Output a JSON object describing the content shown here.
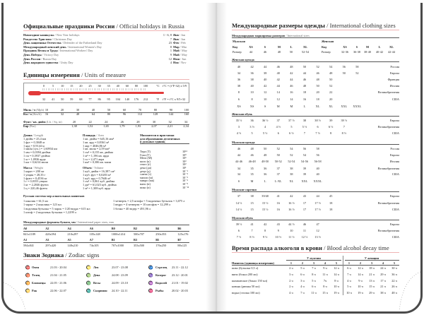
{
  "holidays": {
    "title_ru": "Официальные праздники России",
    "title_en": " / Official holidays in Russia",
    "items": [
      {
        "ru": "Новогодние каникулы",
        "en": " / New Year holidays",
        "day": "1 - 6, 8",
        "mon_ru": "Янв",
        "mon_en": " / Jan"
      },
      {
        "ru": "Рождество Христово",
        "en": " / Christmas Day",
        "day": "7",
        "mon_ru": "Янв",
        "mon_en": " / Jan"
      },
      {
        "ru": "День защитника Отечества",
        "en": " / Defender of the Fatherland Day",
        "day": "23",
        "mon_ru": "Фев",
        "mon_en": " / Feb"
      },
      {
        "ru": "Международный женский день",
        "en": " / International Women's Day",
        "day": "8",
        "mon_ru": "Мар",
        "mon_en": " / Mar"
      },
      {
        "ru": "Праздник Весны и Труда",
        "en": " / International Workers' Day",
        "day": "1",
        "mon_ru": "Май",
        "mon_en": " / May"
      },
      {
        "ru": "День Победы",
        "en": " / Victory Day",
        "day": "9",
        "mon_ru": "Май",
        "mon_en": " / May"
      },
      {
        "ru": "День России",
        "en": " / Russia Day",
        "day": "12",
        "mon_ru": "Июн",
        "mon_en": " / Jun"
      },
      {
        "ru": "День народного единства",
        "en": " / Unity Day",
        "day": "4",
        "mon_ru": "Ноя",
        "mon_en": " / Nov"
      }
    ]
  },
  "units": {
    "title_ru": "Единицы измерения",
    "title_en": " / Units of measure",
    "thermometer": {
      "celsius": [
        "0",
        "5",
        "10",
        "15",
        "20",
        "25",
        "30",
        "35",
        "40",
        "60",
        "80",
        "100"
      ],
      "c_unit": "°C",
      "c_formula": "t°C = (t°F-32) x 5/9",
      "fahrenheit": [
        "32",
        "41",
        "50",
        "59",
        "68",
        "77",
        "86",
        "95",
        "104",
        "140",
        "176",
        "212"
      ],
      "f_unit": "°F",
      "f_formula": "t°F = t°C x 9/5+32",
      "color": "#e23a3a"
    },
    "speed": {
      "mph_ru": "Миль / ч",
      "mph_en": " (Mph)",
      "mph": [
        "10",
        "20",
        "30",
        "40",
        "50",
        "60",
        "70",
        "80",
        "90",
        "100"
      ],
      "kmh_ru": "Км / ч",
      "kmh_en": " (Km/h)",
      "kmh": [
        "16",
        "32",
        "48",
        "64",
        "80",
        "96",
        "112",
        "128",
        "144",
        "160"
      ]
    },
    "pressure": {
      "psi_ru": "Фунт / кв. дюйм",
      "psi_en": " (Lb. / Sq. in)",
      "psi": [
        "20",
        "22",
        "24",
        "26",
        "28",
        "30",
        "32",
        "34"
      ],
      "bar_ru": "Бар",
      "bar_en": " (Bar)",
      "bar": [
        "1,38",
        "1,52",
        "1,65",
        "1,79",
        "1,93",
        "2,07",
        "2,21",
        "2,34"
      ]
    },
    "length": {
      "ru": "Длина",
      "en": " / Length",
      "items": [
        "1 дюйм = 25,4 мм",
        "1 фут = 0,3048 м",
        "1 ярд = 0,9144 м",
        "1 миля (сух.) = 1,60934 км",
        "1 мм = 0,0394 дюйма",
        "1 см = 0,3937 дюйма",
        "1 м = 1,0936 ярда",
        "1 км = 0,6214 мили"
      ]
    },
    "mass": {
      "ru": "Масса",
      "en": " / Weight",
      "items": [
        "1 карат = 200 мг",
        "1 унция = 28,35 г",
        "1 фунт = 0,4536 кг",
        "1 г = 0,0353 унции",
        "1 кг = 2,2046 фунта",
        "1 ц = 220,46 фунта"
      ]
    },
    "area": {
      "ru": "Площадь",
      "en": " / Area",
      "items": [
        "1 кв. дюйм = 645,16 мм²",
        "1 кв. ярд = 0,8361 м²",
        "1 акр = 4046,86 м²",
        "1 кв. миля = 2,59 км²",
        "1 см² = 0,155 кв. дюйма",
        "1 м² = 1,196 кв. ярда",
        "1 га = 2,471 акра",
        "1 км² = 0,386 кв. мили"
      ]
    },
    "volume": {
      "ru": "Объем",
      "en": " / Volume",
      "items": [
        "1 куб. дюйм = 16,387 см³",
        "1 куб. фут = 0,0283 м³",
        "1 куб. ярд = 0,7646 м³",
        "1 см³ = 0,061 куб. дюйма",
        "1 дм³ = 61,023 куб. дюйма",
        "1 м³ = 1,308 куб. ярда"
      ]
    },
    "prefixes": {
      "title": [
        "Множители и приставки",
        "для образования десятичных",
        "и дольных единиц"
      ],
      "items": [
        [
          "Тера (Т)",
          "10¹²"
        ],
        [
          "Гига (Г)",
          "10⁹"
        ],
        [
          "Мега (М)",
          "10⁶"
        ],
        [
          "кило (к)",
          "10³"
        ],
        [
          "гекто (г)",
          "10²"
        ],
        [
          "дека (да)",
          "10¹"
        ],
        [
          "деци (д)",
          "10⁻¹"
        ],
        [
          "санти (с)",
          "10⁻²"
        ],
        [
          "милли (м)",
          "10⁻³"
        ],
        [
          "микро (мк)",
          "10⁻⁶"
        ],
        [
          "нано (н)",
          "10⁻⁹"
        ],
        [
          "пико (п)",
          "10⁻¹²"
        ]
      ]
    },
    "alcohol_measures": {
      "title": "Русская система мер алкогольных напитков",
      "left": [
        "1 шкалик = 61,5 мл",
        "1 чарка = 2 шкалика = 123 мл",
        "1 водочная бутылка = 5 чарок = 1/20 ведра = 615 мл",
        "1 штоф = 2 водочных бутылки = 1,2299 л"
      ],
      "right": [
        "1 четверть = 2,5 штофа = 5 водочных бутылок = 3,075 л",
        "1 ведро = 4 четверти = 10 штофов = 12,299 л",
        "1 бочка = 40 ведер = 491,96 л"
      ]
    },
    "paper": {
      "title_ru": "Международные форматы бумаги, мм",
      "title_en": " / International paper sizes, mm",
      "row1": [
        [
          "A0",
          "841x1189"
        ],
        [
          "A2",
          "420x594"
        ],
        [
          "A4",
          "210x297"
        ],
        [
          "A6",
          "105x148"
        ],
        [
          "B0",
          "1000x1414"
        ],
        [
          "B2",
          "500x707"
        ],
        [
          "B4",
          "250x353"
        ],
        [
          "B6",
          "125x176"
        ]
      ],
      "row2": [
        [
          "A1",
          "594x841"
        ],
        [
          "A3",
          "297x420"
        ],
        [
          "A5",
          "148x210"
        ],
        [
          "A7",
          "74x105"
        ],
        [
          "B1",
          "707x1000"
        ],
        [
          "B3",
          "353x500"
        ],
        [
          "B5",
          "176x250"
        ],
        [
          "B7",
          "88x125"
        ]
      ]
    }
  },
  "zodiac": {
    "title_ru": "Знаки Зодиака",
    "title_en": " / Zodiac signs",
    "columns": [
      [
        {
          "icon": "♈",
          "name": "Овен",
          "dates": "21.03 - 20.04"
        },
        {
          "icon": "♉",
          "name": "Телец",
          "dates": "21.04 - 21.05"
        },
        {
          "icon": "♊",
          "name": "Близнецы",
          "dates": "22.05 - 21.06"
        },
        {
          "icon": "♋",
          "name": "Рак",
          "dates": "22.06 - 22.07"
        }
      ],
      [
        {
          "icon": "♌",
          "name": "Лев",
          "dates": "23.07 - 23.08"
        },
        {
          "icon": "♍",
          "name": "Дева",
          "dates": "24.08 - 23.09"
        },
        {
          "icon": "♎",
          "name": "Весы",
          "dates": "24.09 - 23.10"
        },
        {
          "icon": "♏",
          "name": "Скорпион",
          "dates": "24.10 - 22.11"
        }
      ],
      [
        {
          "icon": "♐",
          "name": "Стрелец",
          "dates": "23.11 - 22.12"
        },
        {
          "icon": "♑",
          "name": "Козерог",
          "dates": "23.12 - 20.01"
        },
        {
          "icon": "♒",
          "name": "Водолей",
          "dates": "21.01 - 19.02"
        },
        {
          "icon": "♓",
          "name": "Рыбы",
          "dates": "20.02 - 20.03"
        }
      ]
    ]
  },
  "clothing": {
    "title_ru": "Международные размеры одежды",
    "title_en": " / International clothing sizes",
    "marking": {
      "title_ru": "Международная маркировка размеров",
      "title_en": " / International sizes",
      "men": {
        "label": "Мужская",
        "code_label": "Код",
        "codes": [
          "XS",
          "S",
          "M",
          "L",
          "XL"
        ],
        "size_label": "Размер",
        "sizes": [
          "44",
          "46",
          "48",
          "50",
          "52-54"
        ]
      },
      "women": {
        "label": "Женская",
        "code_label": "Код",
        "codes": [
          "XS",
          "S",
          "M",
          "L",
          "XL"
        ],
        "size_label": "Размер",
        "sizes": [
          "32-36",
          "36-38",
          "38-40",
          "40-42",
          "42-44"
        ]
      }
    },
    "groups": [
      {
        "title": "Женская одежда",
        "rows": [
          {
            "country": "Россия",
            "v": [
              "40",
              "42",
              "44",
              "46",
              "48",
              "50",
              "52",
              "54",
              "56",
              "58"
            ]
          },
          {
            "country": "Европа",
            "v": [
              "34",
              "36",
              "38",
              "40",
              "42",
              "44",
              "46",
              "48",
              "50",
              "52"
            ]
          },
          {
            "country": "Франция",
            "v": [
              "36",
              "38",
              "40",
              "42",
              "44",
              "46",
              "48",
              "50"
            ]
          },
          {
            "country": "Италия",
            "v": [
              "38",
              "40",
              "42",
              "44",
              "46",
              "48",
              "50",
              "52"
            ]
          },
          {
            "country": "Великобритания",
            "v": [
              "8",
              "10",
              "12",
              "14",
              "16",
              "18",
              "20",
              "22"
            ]
          },
          {
            "country": "США",
            "v": [
              "6",
              "8",
              "10",
              "12",
              "14",
              "16",
              "18",
              "20"
            ]
          },
          {
            "country": "",
            "v": [
              "XS",
              "XS",
              "S",
              "M",
              "M",
              "L",
              "XL",
              "XL",
              "XXL",
              "XXXL"
            ]
          }
        ]
      },
      {
        "title": "Женская обувь",
        "rows": [
          {
            "country": "Европа",
            "v": [
              "35 ½",
              "36",
              "36 ½",
              "37",
              "37 ½",
              "38",
              "38 ½",
              "39",
              "39 ½"
            ]
          },
          {
            "country": "Великобритания",
            "v": [
              "3",
              "3 ½",
              "4",
              "4 ½",
              "5",
              "5 ½",
              "6",
              "6 ½",
              "7"
            ]
          },
          {
            "country": "США",
            "v": [
              "4 ½",
              "5",
              "5 ½",
              "6",
              "6 ½",
              "7",
              "7 ½",
              "8",
              "8 ½"
            ]
          }
        ]
      },
      {
        "title": "Мужская одежда",
        "rows": [
          {
            "country": "Россия",
            "v": [
              "46",
              "48",
              "50",
              "52",
              "54",
              "56",
              "58"
            ]
          },
          {
            "country": "Европа",
            "v": [
              "44",
              "46",
              "48",
              "50",
              "52",
              "54",
              "56"
            ]
          },
          {
            "country": "Италия",
            "v": [
              "44-46",
              "46-48",
              "48-50",
              "50-52",
              "52-54",
              "54-56",
              "56-58"
            ]
          },
          {
            "country": "Великобритания",
            "v": [
              "34",
              "35",
              "36",
              "37",
              "38",
              "39",
              "40"
            ]
          },
          {
            "country": "США",
            "v": [
              "34",
              "35",
              "36",
              "37",
              "38",
              "39",
              "40"
            ]
          },
          {
            "country": "",
            "v": [
              "S",
              "M",
              "L",
              "L-XL",
              "XL",
              "XXL",
              "XXXL"
            ]
          }
        ]
      },
      {
        "title": "Мужские сорочки",
        "rows": [
          {
            "country": "Европа",
            "v": [
              "37",
              "38",
              "39/40",
              "41",
              "42",
              "43",
              "44",
              "45"
            ]
          },
          {
            "country": "Великобритания",
            "v": [
              "14 ½",
              "15",
              "15 ½",
              "16",
              "16 ½",
              "17",
              "17 ½",
              "18"
            ]
          },
          {
            "country": "США",
            "v": [
              "14 ½",
              "15",
              "15 ½",
              "16",
              "16 ½",
              "17",
              "17 ½",
              "18"
            ]
          }
        ]
      },
      {
        "title": "Мужская обувь",
        "rows": [
          {
            "country": "Европа",
            "v": [
              "39 ½",
              "41",
              "42",
              "43",
              "44 ½",
              "46",
              "47"
            ]
          },
          {
            "country": "Великобритания",
            "v": [
              "6",
              "7",
              "8",
              "9",
              "10",
              "11",
              "12"
            ]
          },
          {
            "country": "США",
            "v": [
              "7 ½",
              "8 ½",
              "9 ½",
              "10 ½",
              "11 ½",
              "12 ½",
              "13 ½"
            ]
          }
        ]
      }
    ]
  },
  "alcohol_decay": {
    "title_ru": "Время распада алкоголя в крови",
    "title_en": " / Blood alcohol decay time",
    "men_label": "У мужчин",
    "women_label": "У женщин",
    "drink_header": "Напиток (единицы измерения)",
    "counts": [
      "1",
      "2",
      "3",
      "4",
      "5"
    ],
    "rows": [
      {
        "drink": "пиво (бутылка 0,5 л)",
        "men": [
          "2 ч",
          "5 ч",
          "7 ч",
          "9 ч",
          "12 ч"
        ],
        "women": [
          "6 ч",
          "12 ч",
          "18 ч",
          "24 ч",
          "30 ч"
        ]
      },
      {
        "drink": "вино (бокал 200 мл)",
        "men": [
          "3 ч",
          "6 ч",
          "8 ч",
          "11 ч",
          "14 ч"
        ],
        "women": [
          "7 ч",
          "14 ч",
          "21 ч",
          "29 ч",
          "36 ч"
        ]
      },
      {
        "drink": "шампанское (бокал 150 мл)",
        "men": [
          "2 ч",
          "3 ч",
          "5 ч",
          "7ч",
          "8 ч"
        ],
        "women": [
          "4 ч",
          "9 ч",
          "13 ч",
          "17 ч",
          "22 ч"
        ]
      },
      {
        "drink": "коньяк (рюмка 50 мл)",
        "men": [
          "2 ч",
          "4 ч",
          "6 ч",
          "8 ч",
          "10 ч"
        ],
        "women": [
          "5 ч",
          "10 ч",
          "15 ч",
          "21 ч",
          "26 ч"
        ]
      },
      {
        "drink": "водка (стопка 100 мл)",
        "men": [
          "4 ч",
          "7 ч",
          "11 ч",
          "15 ч",
          "19 ч"
        ],
        "women": [
          "10 ч",
          "19 ч",
          "29 ч",
          "38 ч",
          "48 ч"
        ]
      }
    ]
  },
  "colors": {
    "accent": "#e23a3a",
    "rule": "#f0b4b4"
  }
}
